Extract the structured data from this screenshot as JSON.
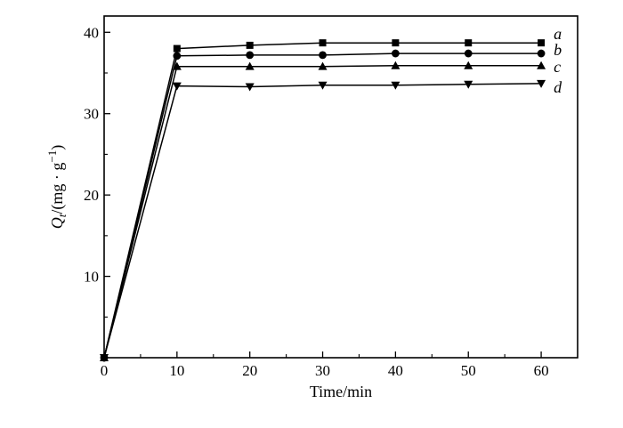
{
  "chart_data": {
    "type": "line",
    "title": "",
    "xlabel": "Time/min",
    "ylabel": "Q_t/(mg · g⁻¹)",
    "ylabel_parts": {
      "symbol": "Q",
      "subscript": "t",
      "unit_open": "/(mg · g",
      "unit_sup": "−1",
      "unit_close": ")"
    },
    "xlim": [
      0,
      65
    ],
    "ylim": [
      0,
      42
    ],
    "x_ticks": [
      0,
      10,
      20,
      30,
      40,
      50,
      60
    ],
    "y_ticks": [
      10,
      20,
      30,
      40
    ],
    "grid": false,
    "series": [
      {
        "name": "a",
        "marker": "square",
        "x": [
          0,
          10,
          20,
          30,
          40,
          50,
          60
        ],
        "y": [
          0,
          38.0,
          38.4,
          38.7,
          38.7,
          38.7,
          38.7
        ]
      },
      {
        "name": "b",
        "marker": "circle",
        "x": [
          0,
          10,
          20,
          30,
          40,
          50,
          60
        ],
        "y": [
          0,
          37.1,
          37.2,
          37.2,
          37.4,
          37.4,
          37.4
        ]
      },
      {
        "name": "c",
        "marker": "triangle-up",
        "x": [
          0,
          10,
          20,
          30,
          40,
          50,
          60
        ],
        "y": [
          0,
          35.8,
          35.8,
          35.8,
          35.9,
          35.9,
          35.9
        ]
      },
      {
        "name": "d",
        "marker": "triangle-down",
        "x": [
          0,
          10,
          20,
          30,
          40,
          50,
          60
        ],
        "y": [
          0,
          33.4,
          33.3,
          33.5,
          33.5,
          33.6,
          33.7
        ]
      }
    ]
  }
}
